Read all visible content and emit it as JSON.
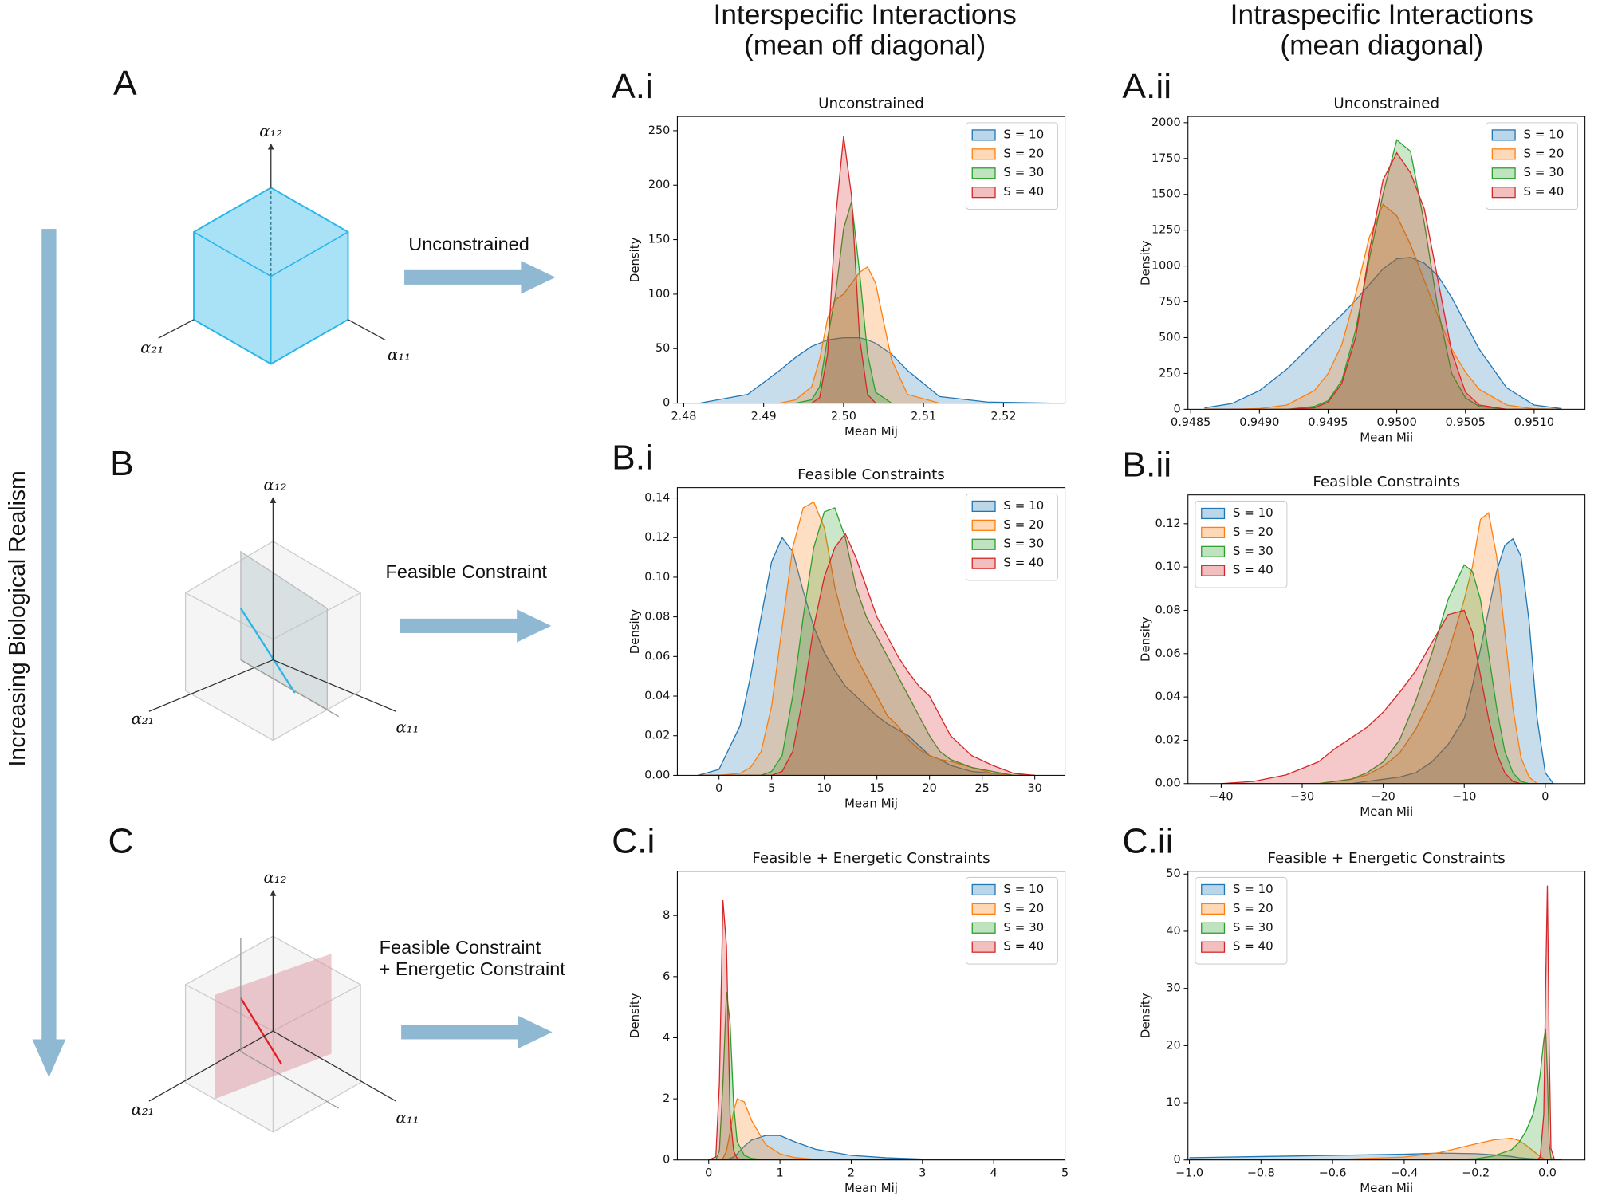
{
  "headings": [
    "Interspecific Interactions",
    "(mean off diagonal)",
    "Intraspecific Interactions",
    "(mean diagonal)"
  ],
  "side_label": "Increasing Biological Realism",
  "diagrams": [
    {
      "label": "A",
      "arrow_text": [
        "Unconstrained"
      ],
      "axes": [
        "α₁₂",
        "α₂₁",
        "α₁₁"
      ]
    },
    {
      "label": "B",
      "arrow_text": [
        "Feasible Constraint"
      ],
      "axes": [
        "α₁₂",
        "α₂₁",
        "α₁₁"
      ]
    },
    {
      "label": "C",
      "arrow_text": [
        "Feasible Constraint",
        "+ Energetic Constraint"
      ],
      "axes": [
        "α₁₂",
        "α₂₁",
        "α₁₁"
      ]
    }
  ],
  "chart_data": [
    {
      "type": "kde",
      "panel": "A.i",
      "title": "Unconstrained",
      "x_label": "Mean Mij",
      "y_label": "Density",
      "legend": "upper right",
      "xlim": [
        2.4792,
        2.5277
      ],
      "ylim": [
        0,
        263
      ],
      "xticks": [
        2.48,
        2.49,
        {
          "value": 2.5,
          "label": "2.50"
        },
        2.51,
        2.52
      ],
      "yticks": [
        0,
        50,
        100,
        150,
        200,
        250
      ],
      "x": [
        2.482,
        2.488,
        2.492,
        2.494,
        2.496,
        2.497,
        2.498,
        2.499,
        2.5,
        2.501,
        2.502,
        2.503,
        2.504,
        2.506,
        2.508,
        2.512,
        2.518,
        2.526
      ],
      "series": [
        {
          "name": "S = 10",
          "color": "#1f77b4",
          "values": [
            0,
            8,
            30,
            42,
            52,
            55,
            58,
            59,
            60,
            60,
            60,
            58,
            55,
            45,
            30,
            6,
            1,
            0
          ]
        },
        {
          "name": "S = 20",
          "color": "#ff7f0e",
          "values": [
            0,
            0,
            0,
            3,
            15,
            40,
            78,
            95,
            100,
            110,
            120,
            125,
            110,
            40,
            8,
            0,
            0,
            0
          ]
        },
        {
          "name": "S = 30",
          "color": "#2ca02c",
          "values": [
            0,
            0,
            0,
            0,
            3,
            15,
            60,
            100,
            160,
            185,
            120,
            45,
            10,
            0,
            0,
            0,
            0,
            0
          ]
        },
        {
          "name": "S = 40",
          "color": "#d62728",
          "values": [
            0,
            0,
            0,
            0,
            0,
            5,
            45,
            170,
            245,
            190,
            60,
            8,
            0,
            0,
            0,
            0,
            0,
            0
          ]
        }
      ]
    },
    {
      "type": "kde",
      "panel": "A.ii",
      "title": "Unconstrained",
      "x_label": "Mean Mii",
      "y_label": "Density",
      "legend": "upper right",
      "xlim": [
        0.94848,
        0.95137
      ],
      "ylim": [
        0,
        2043
      ],
      "xticks": [
        0.9485,
        {
          "value": 0.949,
          "label": "0.9490"
        },
        0.9495,
        {
          "value": 0.95,
          "label": "0.9500"
        },
        0.9505,
        {
          "value": 0.951,
          "label": "0.9510"
        }
      ],
      "yticks": [
        0,
        250,
        500,
        750,
        1000,
        1250,
        1500,
        1750,
        2000
      ],
      "x": [
        0.9486,
        0.9488,
        0.949,
        0.9492,
        0.9494,
        0.9495,
        0.9496,
        0.9497,
        0.9498,
        0.9499,
        0.95,
        0.9501,
        0.9502,
        0.9503,
        0.9504,
        0.9505,
        0.9506,
        0.9508,
        0.951,
        0.9512
      ],
      "series": [
        {
          "name": "S = 10",
          "color": "#1f77b4",
          "values": [
            10,
            40,
            130,
            280,
            470,
            570,
            660,
            760,
            870,
            980,
            1050,
            1060,
            1020,
            930,
            780,
            600,
            420,
            150,
            30,
            5
          ]
        },
        {
          "name": "S = 20",
          "color": "#ff7f0e",
          "values": [
            0,
            0,
            5,
            30,
            130,
            250,
            450,
            800,
            1200,
            1430,
            1350,
            1150,
            900,
            650,
            420,
            260,
            140,
            30,
            3,
            0
          ]
        },
        {
          "name": "S = 30",
          "color": "#2ca02c",
          "values": [
            0,
            0,
            0,
            0,
            20,
            60,
            200,
            550,
            1050,
            1500,
            1880,
            1800,
            1300,
            700,
            250,
            80,
            20,
            0,
            0,
            0
          ]
        },
        {
          "name": "S = 40",
          "color": "#d62728",
          "values": [
            0,
            0,
            0,
            0,
            10,
            50,
            180,
            500,
            1100,
            1600,
            1790,
            1650,
            1400,
            900,
            400,
            120,
            30,
            0,
            0,
            0
          ]
        }
      ]
    },
    {
      "type": "kde",
      "panel": "B.i",
      "title": "Feasible Constraints",
      "x_label": "Mean Mij",
      "y_label": "Density",
      "legend": "upper right",
      "xlim": [
        -3.96,
        32.87
      ],
      "ylim": [
        0,
        0.1452
      ],
      "xticks": [
        0,
        5,
        10,
        15,
        20,
        25,
        30
      ],
      "yticks": [
        {
          "value": 0,
          "label": "0.00"
        },
        0.02,
        0.04,
        0.06,
        0.08,
        {
          "value": 0.1,
          "label": "0.10"
        },
        0.12,
        0.14
      ],
      "x": [
        -2,
        0,
        2,
        3,
        4,
        5,
        6,
        7,
        8,
        9,
        10,
        11,
        12,
        13,
        14,
        15,
        16,
        17,
        18,
        19,
        20,
        21,
        22,
        24,
        26,
        28,
        30
      ],
      "series": [
        {
          "name": "S = 10",
          "color": "#1f77b4",
          "values": [
            0,
            0.003,
            0.025,
            0.05,
            0.08,
            0.108,
            0.12,
            0.113,
            0.093,
            0.075,
            0.062,
            0.053,
            0.045,
            0.04,
            0.035,
            0.03,
            0.026,
            0.023,
            0.02,
            0.015,
            0.01,
            0.008,
            0.005,
            0.002,
            0.001,
            0,
            0
          ]
        },
        {
          "name": "S = 20",
          "color": "#ff7f0e",
          "values": [
            0,
            0,
            0.001,
            0.004,
            0.012,
            0.035,
            0.075,
            0.115,
            0.135,
            0.138,
            0.125,
            0.095,
            0.075,
            0.06,
            0.05,
            0.04,
            0.03,
            0.025,
            0.018,
            0.013,
            0.01,
            0.008,
            0.007,
            0.004,
            0.001,
            0,
            0
          ]
        },
        {
          "name": "S = 30",
          "color": "#2ca02c",
          "values": [
            0,
            0,
            0,
            0,
            0,
            0.002,
            0.01,
            0.04,
            0.08,
            0.115,
            0.133,
            0.135,
            0.12,
            0.095,
            0.08,
            0.07,
            0.06,
            0.05,
            0.04,
            0.03,
            0.02,
            0.012,
            0.008,
            0.004,
            0.002,
            0,
            0
          ]
        },
        {
          "name": "S = 40",
          "color": "#d62728",
          "values": [
            0,
            0,
            0,
            0,
            0,
            0,
            0.002,
            0.012,
            0.04,
            0.075,
            0.1,
            0.115,
            0.122,
            0.11,
            0.095,
            0.08,
            0.07,
            0.06,
            0.052,
            0.045,
            0.04,
            0.03,
            0.02,
            0.01,
            0.005,
            0.001,
            0
          ]
        }
      ]
    },
    {
      "type": "kde",
      "panel": "B.ii",
      "title": "Feasible Constraints",
      "x_label": "Mean Mii",
      "y_label": "Density",
      "legend": "upper left",
      "xlim": [
        -44.1,
        4.9
      ],
      "ylim": [
        0,
        0.1333
      ],
      "xticks": [
        {
          "value": -40,
          "label": "−40"
        },
        {
          "value": -30,
          "label": "−30"
        },
        {
          "value": -20,
          "label": "−20"
        },
        {
          "value": -10,
          "label": "−10"
        },
        0
      ],
      "yticks": [
        {
          "value": 0,
          "label": "0.00"
        },
        0.02,
        0.04,
        0.06,
        0.08,
        {
          "value": 0.1,
          "label": "0.10"
        },
        0.12
      ],
      "x": [
        -40,
        -36,
        -32,
        -28,
        -26,
        -24,
        -22,
        -20,
        -18,
        -16,
        -14,
        -12,
        -10,
        -9,
        -8,
        -7,
        -6,
        -5,
        -4,
        -3,
        -2,
        -1,
        0,
        1
      ],
      "series": [
        {
          "name": "S = 10",
          "color": "#1f77b4",
          "values": [
            0,
            0,
            0,
            0,
            0,
            0,
            0.001,
            0.002,
            0.003,
            0.005,
            0.01,
            0.018,
            0.03,
            0.045,
            0.062,
            0.08,
            0.098,
            0.11,
            0.113,
            0.105,
            0.075,
            0.03,
            0.005,
            0
          ]
        },
        {
          "name": "S = 20",
          "color": "#ff7f0e",
          "values": [
            0,
            0,
            0,
            0,
            0.001,
            0.002,
            0.004,
            0.008,
            0.014,
            0.025,
            0.04,
            0.06,
            0.085,
            0.1,
            0.122,
            0.125,
            0.105,
            0.07,
            0.035,
            0.012,
            0.003,
            0,
            0,
            0
          ]
        },
        {
          "name": "S = 30",
          "color": "#2ca02c",
          "values": [
            0,
            0,
            0,
            0,
            0.001,
            0.002,
            0.005,
            0.01,
            0.02,
            0.038,
            0.06,
            0.085,
            0.101,
            0.098,
            0.085,
            0.06,
            0.035,
            0.015,
            0.005,
            0.001,
            0,
            0,
            0,
            0
          ]
        },
        {
          "name": "S = 40",
          "color": "#d62728",
          "values": [
            0,
            0.001,
            0.004,
            0.01,
            0.016,
            0.021,
            0.026,
            0.033,
            0.042,
            0.052,
            0.065,
            0.078,
            0.08,
            0.07,
            0.05,
            0.03,
            0.014,
            0.005,
            0.001,
            0,
            0,
            0,
            0,
            0
          ]
        }
      ]
    },
    {
      "type": "kde",
      "panel": "C.i",
      "title": "Feasible + Energetic Constraints",
      "x_label": "Mean Mij",
      "y_label": "Density",
      "legend": "upper right",
      "xlim": [
        -0.44,
        5.0
      ],
      "ylim": [
        0,
        9.45
      ],
      "xticks": [
        0,
        1,
        2,
        3,
        4,
        5
      ],
      "yticks": [
        0,
        2,
        4,
        6,
        8
      ],
      "x": [
        0,
        0.1,
        0.15,
        0.2,
        0.25,
        0.3,
        0.35,
        0.4,
        0.5,
        0.6,
        0.8,
        1,
        1.2,
        1.5,
        2,
        2.5,
        3,
        4,
        5
      ],
      "series": [
        {
          "name": "S = 10",
          "color": "#1f77b4",
          "values": [
            0,
            0,
            0,
            0,
            0.02,
            0.05,
            0.1,
            0.2,
            0.45,
            0.65,
            0.8,
            0.8,
            0.6,
            0.35,
            0.15,
            0.07,
            0.03,
            0.01,
            0
          ]
        },
        {
          "name": "S = 20",
          "color": "#ff7f0e",
          "values": [
            0,
            0,
            0,
            0.05,
            0.3,
            0.9,
            1.6,
            2,
            1.9,
            1.3,
            0.5,
            0.2,
            0.08,
            0.02,
            0,
            0,
            0,
            0,
            0
          ]
        },
        {
          "name": "S = 30",
          "color": "#2ca02c",
          "values": [
            0,
            0,
            0.3,
            2.5,
            5.5,
            4.5,
            1.8,
            0.6,
            0.15,
            0.05,
            0,
            0,
            0,
            0,
            0,
            0,
            0,
            0,
            0
          ]
        },
        {
          "name": "S = 40",
          "color": "#d62728",
          "values": [
            0,
            0.1,
            2.5,
            8.5,
            7,
            1.5,
            0.3,
            0.05,
            0,
            0,
            0,
            0,
            0,
            0,
            0,
            0,
            0,
            0,
            0
          ]
        }
      ]
    },
    {
      "type": "kde",
      "panel": "C.ii",
      "title": "Feasible + Energetic Constraints",
      "x_label": "Mean Mii",
      "y_label": "Density",
      "legend": "upper left",
      "xlim": [
        -1.004,
        0.105
      ],
      "ylim": [
        0,
        50.5
      ],
      "xticks": [
        {
          "value": -1,
          "label": "−1.0"
        },
        {
          "value": -0.8,
          "label": "−0.8"
        },
        {
          "value": -0.6,
          "label": "−0.6"
        },
        {
          "value": -0.4,
          "label": "−0.4"
        },
        {
          "value": -0.2,
          "label": "−0.2"
        },
        {
          "value": 0,
          "label": "0.0"
        }
      ],
      "yticks": [
        0,
        10,
        20,
        30,
        40,
        50
      ],
      "x": [
        -1,
        -0.8,
        -0.6,
        -0.4,
        -0.3,
        -0.2,
        -0.15,
        -0.1,
        -0.08,
        -0.06,
        -0.04,
        -0.03,
        -0.02,
        -0.01,
        -0.005,
        0,
        0.005,
        0.01,
        0.02,
        0.04
      ],
      "series": [
        {
          "name": "S = 10",
          "color": "#1f77b4",
          "values": [
            0.4,
            0.6,
            0.8,
            1,
            1.2,
            1.1,
            0.9,
            0.6,
            0.4,
            0.3,
            0.2,
            0.15,
            0.1,
            0.05,
            0.02,
            0.01,
            0,
            0,
            0,
            0
          ]
        },
        {
          "name": "S = 20",
          "color": "#ff7f0e",
          "values": [
            0,
            0,
            0.05,
            0.5,
            1.3,
            2.8,
            3.5,
            3.8,
            3.4,
            2.6,
            1.6,
            1.1,
            0.6,
            0.2,
            0.05,
            0,
            0,
            0,
            0,
            0
          ]
        },
        {
          "name": "S = 30",
          "color": "#2ca02c",
          "values": [
            0,
            0,
            0,
            0,
            0,
            0.2,
            0.7,
            1.8,
            3,
            5,
            8,
            11,
            15,
            21,
            23,
            15,
            3,
            0.3,
            0,
            0
          ]
        },
        {
          "name": "S = 40",
          "color": "#d62728",
          "values": [
            0,
            0,
            0,
            0,
            0,
            0,
            0,
            0,
            0,
            0,
            0,
            0,
            0.5,
            8,
            30,
            48,
            20,
            2,
            0,
            0
          ]
        }
      ]
    }
  ]
}
